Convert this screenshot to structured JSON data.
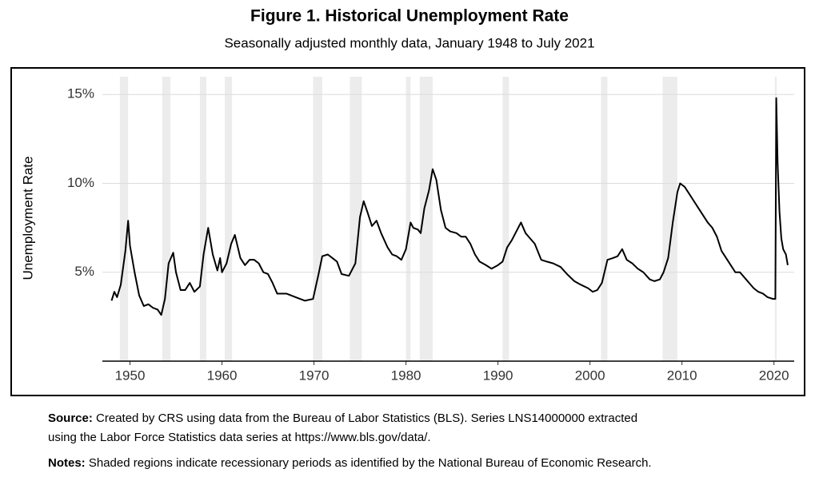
{
  "chart_data": {
    "type": "line",
    "title": "Figure 1. Historical Unemployment Rate",
    "subtitle": "Seasonally adjusted monthly data, January 1948 to July 2021",
    "y_label": "Unemployment Rate",
    "xlim": [
      1947,
      2022.2
    ],
    "ylim": [
      0,
      16
    ],
    "xticks": [
      1950,
      1960,
      1970,
      1980,
      1990,
      2000,
      2010,
      2020
    ],
    "yticks": [
      {
        "value": 5,
        "label": "5%"
      },
      {
        "value": 10,
        "label": "10%"
      },
      {
        "value": 15,
        "label": "15%"
      }
    ],
    "grid": true,
    "recession_color": "#ececec",
    "recessions": [
      [
        1948.9,
        1949.8
      ],
      [
        1953.5,
        1954.4
      ],
      [
        1957.6,
        1958.3
      ],
      [
        1960.3,
        1961.1
      ],
      [
        1969.9,
        1970.9
      ],
      [
        1973.9,
        1975.2
      ],
      [
        1980.0,
        1980.5
      ],
      [
        1981.5,
        1982.9
      ],
      [
        1990.5,
        1991.2
      ],
      [
        2001.2,
        2001.9
      ],
      [
        2007.9,
        2009.5
      ],
      [
        2020.1,
        2020.3
      ]
    ],
    "series": [
      {
        "name": "Unemployment Rate",
        "color": "#000000",
        "x": [
          1948.0,
          1948.3,
          1948.6,
          1949.0,
          1949.5,
          1949.8,
          1950.0,
          1950.5,
          1951.0,
          1951.5,
          1952.0,
          1952.5,
          1953.0,
          1953.4,
          1953.8,
          1954.2,
          1954.7,
          1955.0,
          1955.5,
          1956.0,
          1956.5,
          1957.0,
          1957.6,
          1958.0,
          1958.5,
          1959.0,
          1959.5,
          1959.8,
          1960.0,
          1960.5,
          1961.0,
          1961.4,
          1962.0,
          1962.5,
          1963.0,
          1963.5,
          1964.0,
          1964.5,
          1965.0,
          1965.5,
          1966.0,
          1967.0,
          1968.0,
          1969.0,
          1969.9,
          1970.5,
          1970.9,
          1971.5,
          1972.0,
          1972.5,
          1973.0,
          1973.8,
          1974.5,
          1975.0,
          1975.4,
          1975.8,
          1976.3,
          1976.8,
          1977.3,
          1978.0,
          1978.5,
          1979.0,
          1979.5,
          1980.0,
          1980.5,
          1980.8,
          1981.3,
          1981.6,
          1982.0,
          1982.5,
          1982.9,
          1983.3,
          1983.8,
          1984.3,
          1984.8,
          1985.5,
          1986.0,
          1986.5,
          1987.0,
          1987.5,
          1988.0,
          1988.7,
          1989.3,
          1990.0,
          1990.5,
          1991.0,
          1991.5,
          1992.0,
          1992.5,
          1993.0,
          1993.5,
          1994.0,
          1994.7,
          1995.3,
          1996.0,
          1996.8,
          1997.5,
          1998.3,
          1999.0,
          1999.8,
          2000.3,
          2000.8,
          2001.3,
          2001.9,
          2002.5,
          2003.0,
          2003.5,
          2004.0,
          2004.6,
          2005.2,
          2005.8,
          2006.5,
          2007.0,
          2007.6,
          2008.0,
          2008.5,
          2009.0,
          2009.5,
          2009.8,
          2010.3,
          2010.8,
          2011.3,
          2011.8,
          2012.3,
          2012.8,
          2013.3,
          2013.8,
          2014.3,
          2014.8,
          2015.3,
          2015.8,
          2016.3,
          2016.8,
          2017.3,
          2017.8,
          2018.3,
          2018.8,
          2019.3,
          2019.9,
          2020.15,
          2020.25,
          2020.4,
          2020.6,
          2020.8,
          2021.0,
          2021.3,
          2021.5
        ],
        "values": [
          3.4,
          3.9,
          3.6,
          4.3,
          6.2,
          7.9,
          6.5,
          5.0,
          3.7,
          3.1,
          3.2,
          3.0,
          2.9,
          2.6,
          3.5,
          5.5,
          6.1,
          5.0,
          4.0,
          4.0,
          4.4,
          3.9,
          4.2,
          6.0,
          7.5,
          6.0,
          5.1,
          5.8,
          5.0,
          5.5,
          6.6,
          7.1,
          5.8,
          5.4,
          5.7,
          5.7,
          5.5,
          5.0,
          4.9,
          4.4,
          3.8,
          3.8,
          3.6,
          3.4,
          3.5,
          4.9,
          5.9,
          6.0,
          5.8,
          5.6,
          4.9,
          4.8,
          5.5,
          8.1,
          9.0,
          8.4,
          7.6,
          7.9,
          7.2,
          6.4,
          6.0,
          5.9,
          5.7,
          6.3,
          7.8,
          7.5,
          7.4,
          7.2,
          8.6,
          9.6,
          10.8,
          10.2,
          8.5,
          7.5,
          7.3,
          7.2,
          7.0,
          7.0,
          6.6,
          6.0,
          5.6,
          5.4,
          5.2,
          5.4,
          5.6,
          6.4,
          6.8,
          7.3,
          7.8,
          7.2,
          6.9,
          6.6,
          5.7,
          5.6,
          5.5,
          5.3,
          4.9,
          4.5,
          4.3,
          4.1,
          3.9,
          4.0,
          4.4,
          5.7,
          5.8,
          5.9,
          6.3,
          5.7,
          5.5,
          5.2,
          5.0,
          4.6,
          4.5,
          4.6,
          5.0,
          5.8,
          7.8,
          9.5,
          10.0,
          9.8,
          9.4,
          9.0,
          8.6,
          8.2,
          7.8,
          7.5,
          7.0,
          6.2,
          5.8,
          5.4,
          5.0,
          5.0,
          4.7,
          4.4,
          4.1,
          3.9,
          3.8,
          3.6,
          3.5,
          3.5,
          14.8,
          11.1,
          8.4,
          6.9,
          6.3,
          6.0,
          5.4
        ]
      }
    ],
    "notes": {
      "source_label": "Source:",
      "source_text": "Created by CRS using data from the Bureau of Labor Statistics (BLS). Series LNS14000000 extracted",
      "source_text2": "using the Labor Force Statistics data series at https://www.bls.gov/data/.",
      "notes_label": "Notes:",
      "notes_text": "Shaded regions indicate recessionary periods as identified by the National Bureau of Economic Research."
    }
  }
}
